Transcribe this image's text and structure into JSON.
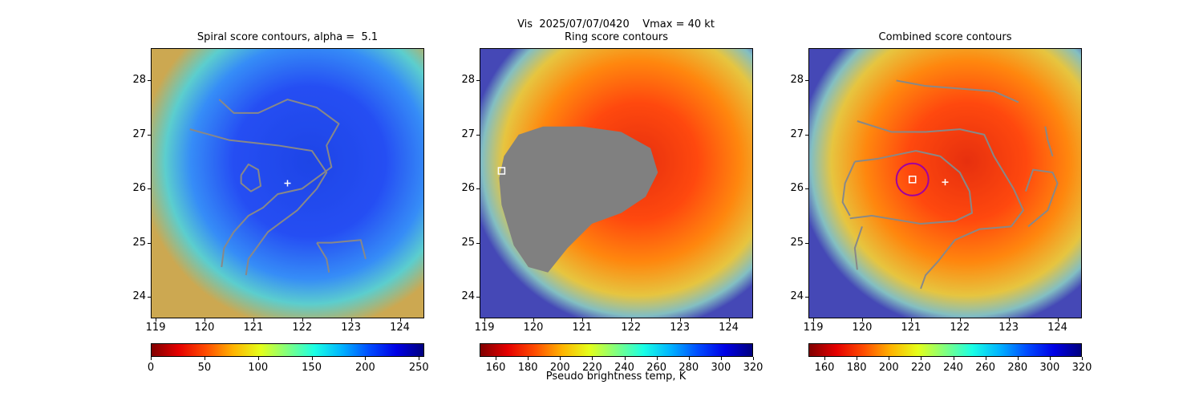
{
  "figure": {
    "suptitle": "Vis  2025/07/07/0420    Vmax = 40 kt",
    "colorbar_label": "Pseudo brightness temp, K"
  },
  "chart_data": [
    {
      "type": "heatmap",
      "title": "Spiral score contours, alpha =  5.1",
      "colormap": "jet_r",
      "x_range": [
        118.9,
        124.5
      ],
      "y_range": [
        23.6,
        28.6
      ],
      "xticks": [
        119,
        120,
        121,
        122,
        123,
        124
      ],
      "yticks": [
        24,
        25,
        26,
        27,
        28
      ],
      "colorbar": {
        "range": [
          0,
          255
        ],
        "ticks": [
          0,
          50,
          100,
          150,
          200,
          250
        ]
      },
      "markers": [
        {
          "kind": "plus",
          "color": "#ffffff",
          "x": 121.7,
          "y": 26.1
        }
      ],
      "contours": [
        {
          "color": "#888888",
          "points": [
            [
              120.3,
              27.65
            ],
            [
              120.6,
              27.4
            ],
            [
              121.1,
              27.4
            ],
            [
              121.7,
              27.65
            ],
            [
              122.3,
              27.5
            ],
            [
              122.75,
              27.2
            ],
            [
              122.5,
              26.8
            ],
            [
              122.6,
              26.4
            ],
            [
              122.0,
              26.0
            ],
            [
              121.5,
              25.9
            ],
            [
              121.2,
              25.65
            ],
            [
              120.9,
              25.5
            ],
            [
              120.6,
              25.2
            ],
            [
              120.4,
              24.9
            ],
            [
              120.35,
              24.55
            ]
          ]
        },
        {
          "color": "#888888",
          "points": [
            [
              119.7,
              27.1
            ],
            [
              120.5,
              26.9
            ],
            [
              121.5,
              26.8
            ],
            [
              122.2,
              26.7
            ],
            [
              122.5,
              26.3
            ],
            [
              122.3,
              26.0
            ],
            [
              121.9,
              25.6
            ],
            [
              121.3,
              25.2
            ],
            [
              120.9,
              24.7
            ],
            [
              120.85,
              24.4
            ]
          ]
        },
        {
          "color": "#888888",
          "points": [
            [
              120.75,
              26.25
            ],
            [
              120.9,
              26.45
            ],
            [
              121.1,
              26.35
            ],
            [
              121.15,
              26.05
            ],
            [
              120.95,
              25.95
            ],
            [
              120.75,
              26.1
            ],
            [
              120.75,
              26.25
            ]
          ]
        },
        {
          "color": "#888888",
          "points": [
            [
              122.3,
              25.0
            ],
            [
              122.6,
              25.0
            ],
            [
              123.2,
              25.05
            ],
            [
              123.3,
              24.7
            ]
          ]
        },
        {
          "color": "#888888",
          "points": [
            [
              122.3,
              25.0
            ],
            [
              122.5,
              24.7
            ],
            [
              122.55,
              24.45
            ]
          ]
        }
      ]
    },
    {
      "type": "heatmap",
      "title": "Ring score contours",
      "colormap": "jet_r",
      "x_range": [
        118.9,
        124.5
      ],
      "y_range": [
        23.6,
        28.6
      ],
      "xticks": [
        119,
        120,
        121,
        122,
        123,
        124
      ],
      "yticks": [
        24,
        25,
        26,
        27,
        28
      ],
      "colorbar": {
        "range": [
          150,
          320
        ],
        "ticks": [
          160,
          180,
          200,
          220,
          240,
          260,
          280,
          300,
          320
        ]
      },
      "markers": [
        {
          "kind": "square",
          "color": "#ffffff",
          "x": 119.35,
          "y": 26.33
        }
      ],
      "overlay_region": {
        "color": "#808080",
        "points": [
          [
            119.4,
            26.6
          ],
          [
            119.7,
            27.0
          ],
          [
            120.2,
            27.15
          ],
          [
            121.0,
            27.15
          ],
          [
            121.8,
            27.05
          ],
          [
            122.4,
            26.75
          ],
          [
            122.55,
            26.3
          ],
          [
            122.3,
            25.85
          ],
          [
            121.8,
            25.55
          ],
          [
            121.2,
            25.35
          ],
          [
            120.7,
            24.9
          ],
          [
            120.3,
            24.45
          ],
          [
            119.9,
            24.55
          ],
          [
            119.6,
            24.95
          ],
          [
            119.35,
            25.7
          ],
          [
            119.3,
            26.2
          ],
          [
            119.4,
            26.6
          ]
        ]
      },
      "contours": []
    },
    {
      "type": "heatmap",
      "title": "Combined score contours",
      "colormap": "jet_r",
      "x_range": [
        118.9,
        124.5
      ],
      "y_range": [
        23.6,
        28.6
      ],
      "xticks": [
        119,
        120,
        121,
        122,
        123,
        124
      ],
      "yticks": [
        24,
        25,
        26,
        27,
        28
      ],
      "colorbar": {
        "range": [
          150,
          320
        ],
        "ticks": [
          160,
          180,
          200,
          220,
          240,
          260,
          280,
          300,
          320
        ]
      },
      "markers": [
        {
          "kind": "circle",
          "color": "#a000a0",
          "x": 121.03,
          "y": 26.17
        },
        {
          "kind": "square",
          "color": "#ffffff",
          "x": 121.03,
          "y": 26.17
        },
        {
          "kind": "plus",
          "color": "#ffffff",
          "x": 121.7,
          "y": 26.12
        }
      ],
      "contours": [
        {
          "color": "#888888",
          "points": [
            [
              120.7,
              28.0
            ],
            [
              121.3,
              27.9
            ],
            [
              122.0,
              27.85
            ],
            [
              122.7,
              27.8
            ],
            [
              123.2,
              27.6
            ]
          ]
        },
        {
          "color": "#888888",
          "points": [
            [
              119.9,
              27.25
            ],
            [
              120.6,
              27.05
            ],
            [
              121.3,
              27.05
            ],
            [
              122.0,
              27.1
            ],
            [
              122.5,
              27.0
            ],
            [
              122.7,
              26.6
            ],
            [
              123.1,
              26.0
            ],
            [
              123.3,
              25.6
            ],
            [
              123.05,
              25.3
            ],
            [
              122.4,
              25.25
            ],
            [
              121.9,
              25.05
            ],
            [
              121.55,
              24.65
            ],
            [
              121.3,
              24.4
            ],
            [
              121.2,
              24.15
            ]
          ]
        },
        {
          "color": "#888888",
          "points": [
            [
              119.85,
              26.5
            ],
            [
              120.3,
              26.55
            ],
            [
              121.1,
              26.7
            ],
            [
              121.6,
              26.6
            ],
            [
              122.0,
              26.3
            ],
            [
              122.2,
              25.95
            ],
            [
              122.25,
              25.55
            ],
            [
              121.9,
              25.4
            ],
            [
              121.2,
              25.35
            ],
            [
              120.2,
              25.5
            ],
            [
              119.75,
              25.45
            ]
          ]
        },
        {
          "color": "#888888",
          "points": [
            [
              119.75,
              25.5
            ],
            [
              119.6,
              25.75
            ],
            [
              119.65,
              26.1
            ],
            [
              119.85,
              26.5
            ]
          ]
        },
        {
          "color": "#888888",
          "points": [
            [
              123.35,
              25.95
            ],
            [
              123.5,
              26.35
            ],
            [
              123.9,
              26.3
            ],
            [
              124.0,
              26.1
            ],
            [
              123.8,
              25.6
            ],
            [
              123.4,
              25.3
            ]
          ]
        },
        {
          "color": "#888888",
          "points": [
            [
              123.75,
              27.15
            ],
            [
              123.8,
              26.9
            ],
            [
              123.9,
              26.6
            ]
          ]
        },
        {
          "color": "#888888",
          "points": [
            [
              119.9,
              24.5
            ],
            [
              119.85,
              24.9
            ],
            [
              120.0,
              25.3
            ]
          ]
        }
      ]
    }
  ]
}
